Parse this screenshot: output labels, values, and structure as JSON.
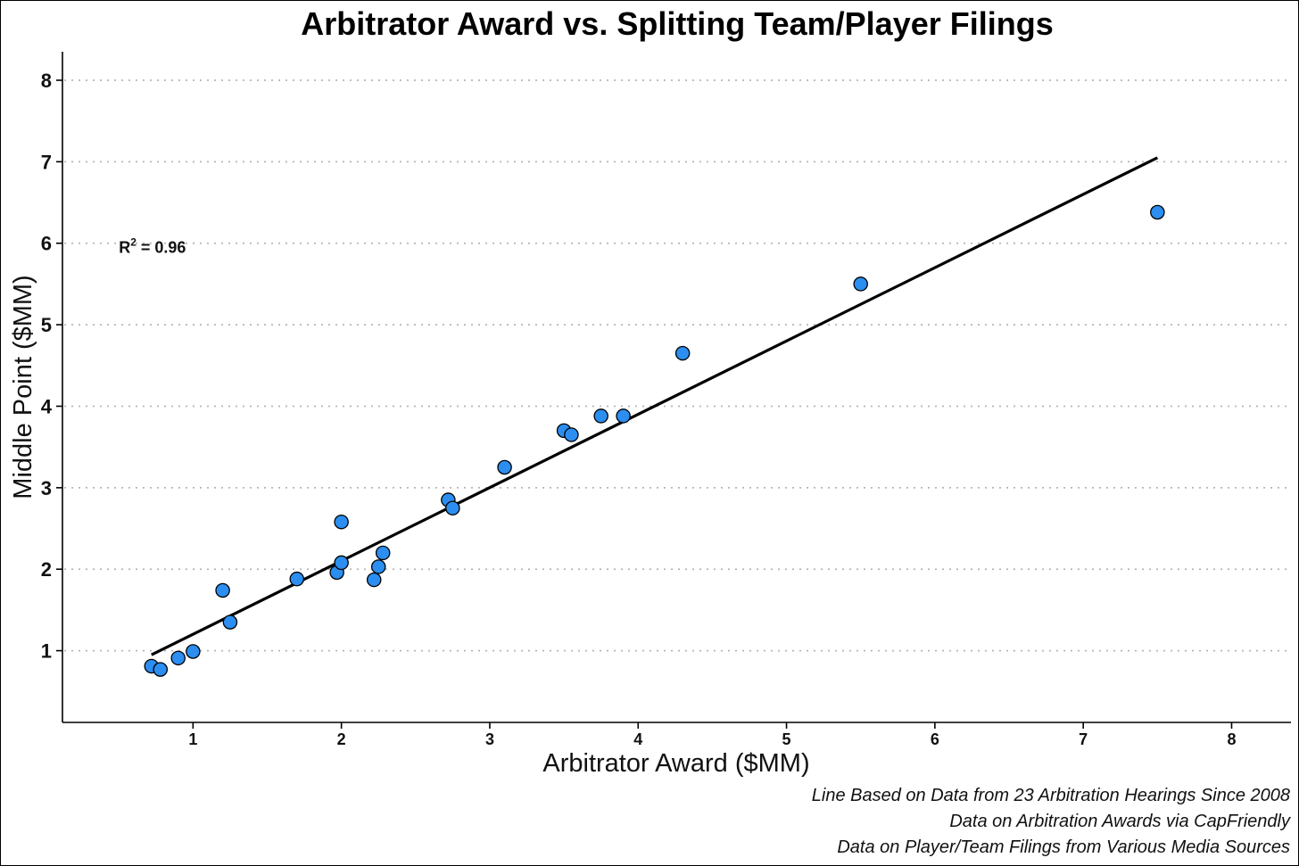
{
  "chart_data": {
    "type": "scatter",
    "title": "Arbitrator Award vs. Splitting Team/Player Filings",
    "xlabel": "Arbitrator Award ($MM)",
    "ylabel": "Middle Point ($MM)",
    "xlim": [
      0.12,
      8.4
    ],
    "ylim": [
      0.12,
      8.35
    ],
    "x_ticks": [
      1,
      2,
      3,
      4,
      5,
      6,
      7,
      8
    ],
    "y_ticks": [
      1,
      2,
      3,
      4,
      5,
      6,
      7,
      8
    ],
    "grid": "horizontal dotted",
    "points": [
      {
        "x": 0.72,
        "y": 0.81
      },
      {
        "x": 0.78,
        "y": 0.77
      },
      {
        "x": 0.9,
        "y": 0.91
      },
      {
        "x": 1.0,
        "y": 0.99
      },
      {
        "x": 1.2,
        "y": 1.74
      },
      {
        "x": 1.25,
        "y": 1.35
      },
      {
        "x": 1.7,
        "y": 1.88
      },
      {
        "x": 1.97,
        "y": 1.96
      },
      {
        "x": 2.0,
        "y": 2.08
      },
      {
        "x": 2.0,
        "y": 2.58
      },
      {
        "x": 2.22,
        "y": 1.87
      },
      {
        "x": 2.25,
        "y": 2.03
      },
      {
        "x": 2.28,
        "y": 2.2
      },
      {
        "x": 2.72,
        "y": 2.85
      },
      {
        "x": 2.75,
        "y": 2.75
      },
      {
        "x": 3.1,
        "y": 3.25
      },
      {
        "x": 3.5,
        "y": 3.7
      },
      {
        "x": 3.55,
        "y": 3.65
      },
      {
        "x": 3.75,
        "y": 3.88
      },
      {
        "x": 3.9,
        "y": 3.88
      },
      {
        "x": 4.3,
        "y": 4.65
      },
      {
        "x": 5.5,
        "y": 5.5
      },
      {
        "x": 7.5,
        "y": 6.38
      }
    ],
    "trend_line": {
      "x1": 0.72,
      "y1": 0.95,
      "x2": 7.5,
      "y2": 7.05
    },
    "annotation": {
      "base": "R",
      "superscript": "2",
      "rest": " = 0.96",
      "x": 0.5,
      "y": 5.95
    },
    "colors": {
      "point_fill": "#2b8ef0",
      "point_stroke": "#000000",
      "line": "#000000",
      "grid": "#b5b5b5"
    }
  },
  "captions": [
    "Line Based on Data from 23 Arbitration Hearings Since 2008",
    "Data on Arbitration Awards via CapFriendly",
    "Data on Player/Team Filings from Various Media Sources"
  ]
}
